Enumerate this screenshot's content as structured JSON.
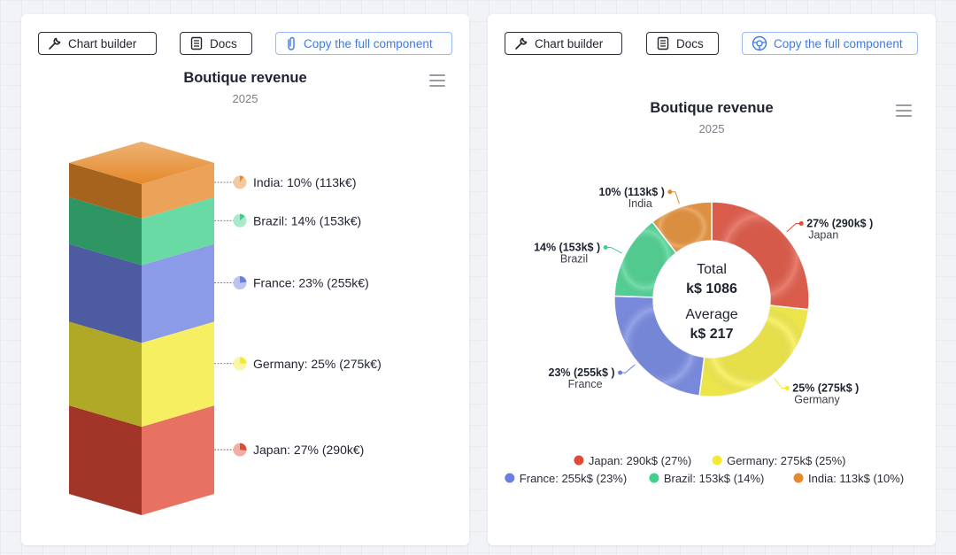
{
  "toolbar": {
    "chart_builder_label": "Chart builder",
    "docs_label": "Docs",
    "copy_label": "Copy the full component"
  },
  "colors": {
    "Japan": "#e04a36",
    "Germany": "#f4ea36",
    "France": "#6b7fe0",
    "Brazil": "#3fd08a",
    "India": "#e5892a"
  },
  "chart_data": [
    {
      "type": "stacked-column-3d",
      "title": "Boutique revenue",
      "subtitle": "2025",
      "unit": "k€",
      "series": [
        {
          "name": "Japan",
          "percent": 27,
          "value": 290,
          "label": "Japan: 27% (290k€)"
        },
        {
          "name": "Germany",
          "percent": 25,
          "value": 275,
          "label": "Germany: 25% (275k€)"
        },
        {
          "name": "France",
          "percent": 23,
          "value": 255,
          "label": "France: 23% (255k€)"
        },
        {
          "name": "Brazil",
          "percent": 14,
          "value": 153,
          "label": "Brazil: 14% (153k€)"
        },
        {
          "name": "India",
          "percent": 10,
          "value": 113,
          "label": "India: 10% (113k€)"
        }
      ]
    },
    {
      "type": "pie",
      "variant": "donut",
      "title": "Boutique revenue",
      "subtitle": "2025",
      "center": {
        "total_label": "Total",
        "total_value": "k$ 1086",
        "average_label": "Average",
        "average_value": "k$ 217"
      },
      "series": [
        {
          "name": "Japan",
          "value": 290,
          "percent": 27,
          "label_top": "27% (290k$ )",
          "legend": "Japan: 290k$ (27%)"
        },
        {
          "name": "Germany",
          "value": 275,
          "percent": 25,
          "label_top": "25% (275k$ )",
          "legend": "Germany: 275k$ (25%)"
        },
        {
          "name": "France",
          "value": 255,
          "percent": 23,
          "label_top": "23% (255k$ )",
          "legend": "France: 255k$ (23%)"
        },
        {
          "name": "Brazil",
          "value": 153,
          "percent": 14,
          "label_top": "14% (153k$ )",
          "legend": "Brazil: 153k$ (14%)"
        },
        {
          "name": "India",
          "value": 113,
          "percent": 10,
          "label_top": "10% (113k$ )",
          "legend": "India: 113k$ (10%)"
        }
      ]
    }
  ]
}
